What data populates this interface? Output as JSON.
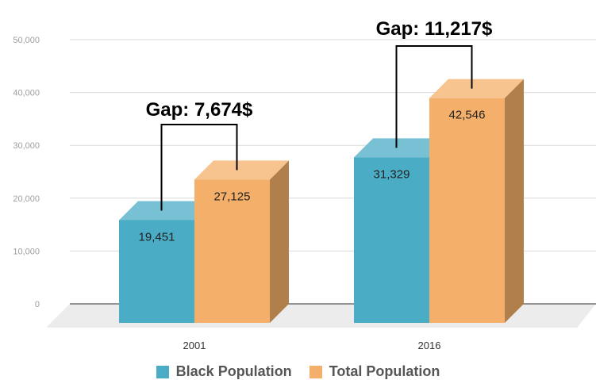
{
  "chart_data": {
    "type": "bar",
    "categories": [
      "2001",
      "2016"
    ],
    "series": [
      {
        "name": "Black Population",
        "values": [
          19451,
          31329
        ],
        "color": "#4bacc6"
      },
      {
        "name": "Total Population",
        "values": [
          27125,
          42546
        ],
        "color": "#f4b06a"
      }
    ],
    "data_labels": [
      "19,451",
      "27,125",
      "31,329",
      "42,546"
    ],
    "y_ticks": [
      "0",
      "10,000",
      "20,000",
      "30,000",
      "40,000",
      "50,000"
    ],
    "ylim": [
      0,
      50000
    ],
    "annotations": [
      "Gap: 7,674$",
      "Gap: 11,217$"
    ],
    "grid": true,
    "three_d": true,
    "legend_position": "bottom"
  }
}
